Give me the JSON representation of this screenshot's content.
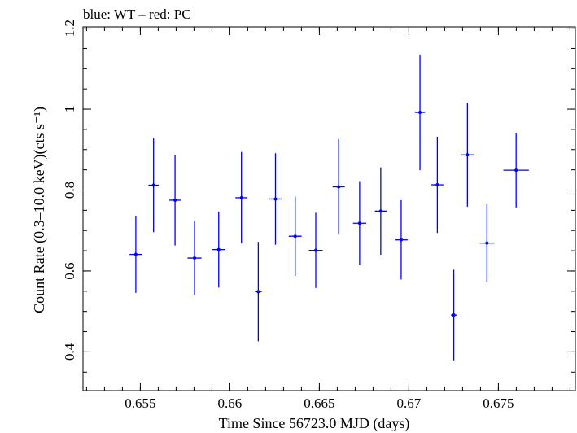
{
  "chart_data": {
    "type": "scatter",
    "title": "blue: WT – red: PC",
    "xlabel": "Time Since 56723.0 MJD (days)",
    "ylabel": "Count Rate (0.3–10.0 keV)(cts s⁻¹)",
    "xlim": [
      0.6518,
      0.6793
    ],
    "ylim": [
      0.3043,
      1.2032
    ],
    "x_ticks": [
      0.655,
      0.66,
      0.665,
      0.67,
      0.675
    ],
    "x_tick_labels": [
      "0.655",
      "0.66",
      "0.665",
      "0.67",
      "0.675"
    ],
    "y_ticks": [
      0.4,
      0.6,
      0.8,
      1.0,
      1.2
    ],
    "y_tick_labels": [
      "0.4",
      "0.6",
      "0.8",
      "1",
      "1.2"
    ],
    "grid": false,
    "series": [
      {
        "color": "#0000ff",
        "points": [
          {
            "x": 0.65475,
            "xerr": 0.00035,
            "y": 0.641,
            "yerr_lo": 0.095,
            "yerr_hi": 0.095
          },
          {
            "x": 0.65574,
            "xerr": 0.00029,
            "y": 0.812,
            "yerr_lo": 0.116,
            "yerr_hi": 0.116
          },
          {
            "x": 0.65694,
            "xerr": 0.00032,
            "y": 0.775,
            "yerr_lo": 0.112,
            "yerr_hi": 0.112
          },
          {
            "x": 0.65803,
            "xerr": 0.00039,
            "y": 0.632,
            "yerr_lo": 0.091,
            "yerr_hi": 0.091
          },
          {
            "x": 0.65938,
            "xerr": 0.00037,
            "y": 0.653,
            "yerr_lo": 0.094,
            "yerr_hi": 0.094
          },
          {
            "x": 0.66065,
            "xerr": 0.00034,
            "y": 0.781,
            "yerr_lo": 0.113,
            "yerr_hi": 0.113
          },
          {
            "x": 0.66159,
            "xerr": 0.00019,
            "y": 0.549,
            "yerr_lo": 0.123,
            "yerr_hi": 0.123
          },
          {
            "x": 0.66255,
            "xerr": 0.00035,
            "y": 0.778,
            "yerr_lo": 0.113,
            "yerr_hi": 0.113
          },
          {
            "x": 0.66365,
            "xerr": 0.00036,
            "y": 0.686,
            "yerr_lo": 0.098,
            "yerr_hi": 0.098
          },
          {
            "x": 0.6648,
            "xerr": 0.00039,
            "y": 0.651,
            "yerr_lo": 0.093,
            "yerr_hi": 0.093
          },
          {
            "x": 0.66608,
            "xerr": 0.00034,
            "y": 0.808,
            "yerr_lo": 0.118,
            "yerr_hi": 0.118
          },
          {
            "x": 0.66725,
            "xerr": 0.00037,
            "y": 0.718,
            "yerr_lo": 0.104,
            "yerr_hi": 0.104
          },
          {
            "x": 0.66843,
            "xerr": 0.00033,
            "y": 0.748,
            "yerr_lo": 0.108,
            "yerr_hi": 0.108
          },
          {
            "x": 0.66957,
            "xerr": 0.00036,
            "y": 0.677,
            "yerr_lo": 0.098,
            "yerr_hi": 0.098
          },
          {
            "x": 0.67062,
            "xerr": 0.00028,
            "y": 0.992,
            "yerr_lo": 0.143,
            "yerr_hi": 0.143
          },
          {
            "x": 0.67159,
            "xerr": 0.00034,
            "y": 0.813,
            "yerr_lo": 0.119,
            "yerr_hi": 0.119
          },
          {
            "x": 0.67251,
            "xerr": 0.00016,
            "y": 0.491,
            "yerr_lo": 0.112,
            "yerr_hi": 0.112
          },
          {
            "x": 0.67327,
            "xerr": 0.00035,
            "y": 0.887,
            "yerr_lo": 0.128,
            "yerr_hi": 0.128
          },
          {
            "x": 0.67436,
            "xerr": 0.0004,
            "y": 0.669,
            "yerr_lo": 0.096,
            "yerr_hi": 0.096
          },
          {
            "x": 0.67599,
            "xerr": 0.00071,
            "y": 0.849,
            "yerr_lo": 0.092,
            "yerr_hi": 0.092
          }
        ]
      }
    ]
  }
}
